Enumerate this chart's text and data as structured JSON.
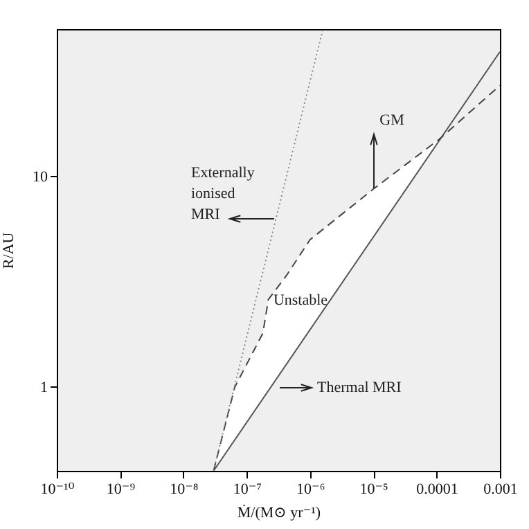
{
  "chart_data": {
    "type": "line",
    "xlabel": "Ṁ/(M⊙ yr⁻¹)",
    "ylabel": "R/AU",
    "log": "xy",
    "grid": false,
    "marker": "none",
    "xlim": [
      1e-10,
      0.001
    ],
    "ylim": [
      0.4,
      50
    ],
    "xticks": [
      {
        "value": 1e-10,
        "label": "10⁻¹⁰"
      },
      {
        "value": 1e-09,
        "label": "10⁻⁹"
      },
      {
        "value": 1e-08,
        "label": "10⁻⁸"
      },
      {
        "value": 1e-07,
        "label": "10⁻⁷"
      },
      {
        "value": 1e-06,
        "label": "10⁻⁶"
      },
      {
        "value": 1e-05,
        "label": "10⁻⁵"
      },
      0.0001,
      0.001
    ],
    "yticks": [
      1,
      10
    ],
    "series": [
      {
        "color": "#555555",
        "line_style": "solid",
        "x": [
          3e-08,
          0.001
        ],
        "values": [
          0.4,
          39
        ]
      },
      {
        "color": "#444444",
        "line_style": "dashed",
        "x": [
          3e-08,
          6.5e-08,
          1.8e-07,
          2.2e-07,
          4.3e-07,
          1e-06,
          1e-05,
          0.00011,
          0.001
        ],
        "values": [
          0.4,
          1,
          1.8,
          2.6,
          3.4,
          5,
          8.7,
          15,
          27
        ],
        "lower": [
          0.4,
          0.56,
          0.88,
          0.96,
          1.29,
          1.87,
          5.15,
          14.8,
          null
        ],
        "upper": [
          0.4,
          1,
          1.8,
          2.6,
          3.4,
          5,
          8.7,
          15,
          null
        ]
      },
      {
        "color": "#888888",
        "line_style": "dotted",
        "x": [
          3e-08,
          1.6e-06
        ],
        "values": [
          0.4,
          50
        ]
      }
    ],
    "annotations": [
      "Externally\nionised\nMRI",
      "GM",
      "Unstable",
      "Thermal MRI"
    ]
  }
}
